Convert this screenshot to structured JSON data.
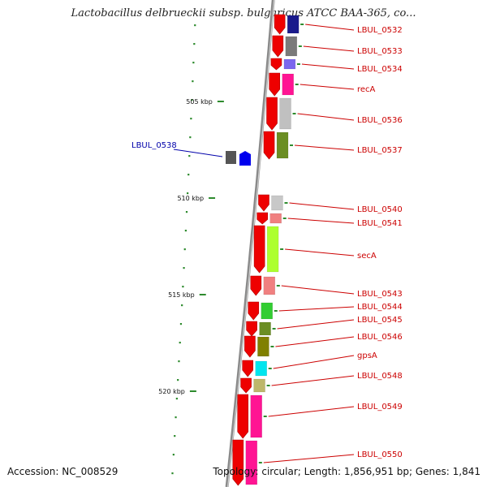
{
  "title": "Lactobacillus delbrueckii subsp. bulgaricus ATCC BAA-365, co...",
  "footer": {
    "accession": "Accession: NC_008529",
    "summary": "Topology: circular; Length: 1,856,951 bp; Genes: 1,841"
  },
  "ruler": [
    "505 kbp",
    "510 kbp",
    "515 kbp",
    "520 kbp"
  ],
  "genes": [
    {
      "label": "LBUL_0532",
      "color": "#1a1a8c"
    },
    {
      "label": "LBUL_0533",
      "color": "#7a7a7a"
    },
    {
      "label": "LBUL_0534",
      "color": "#7b68ee"
    },
    {
      "label": "recA",
      "color": "#ff1493"
    },
    {
      "label": "LBUL_0536",
      "color": "#c0c0c0"
    },
    {
      "label": "LBUL_0537",
      "color": "#6b8e23"
    },
    {
      "label": "LBUL_0538",
      "color": "#0000ee"
    },
    {
      "label": "LBUL_0540",
      "color": "#c8c8c8"
    },
    {
      "label": "LBUL_0541",
      "color": "#f08080"
    },
    {
      "label": "secA",
      "color": "#adff2f"
    },
    {
      "label": "LBUL_0543",
      "color": "#f08080"
    },
    {
      "label": "LBUL_0544",
      "color": "#32cd32"
    },
    {
      "label": "LBUL_0545",
      "color": "#6b8e23"
    },
    {
      "label": "LBUL_0546",
      "color": "#808000"
    },
    {
      "label": "gpsA",
      "color": "#00e5ee"
    },
    {
      "label": "LBUL_0548",
      "color": "#bdb76b"
    },
    {
      "label": "LBUL_0549",
      "color": "#ff1493"
    },
    {
      "label": "LBUL_0550",
      "color": "#ff1493"
    }
  ]
}
